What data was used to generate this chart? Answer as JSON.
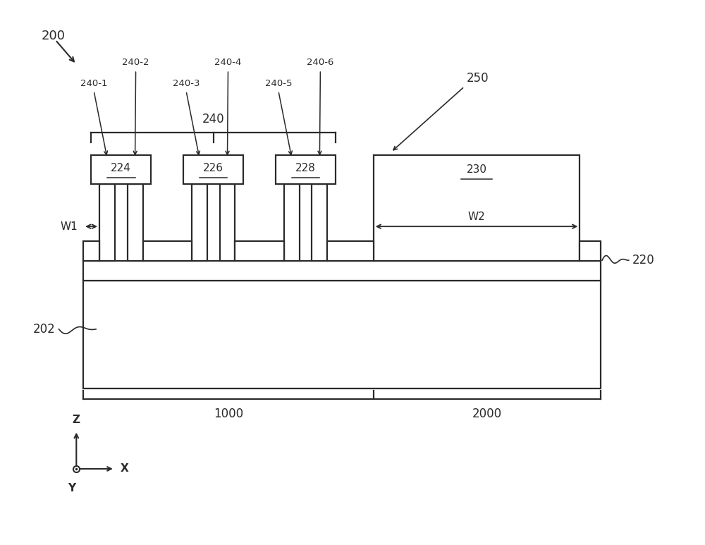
{
  "bg_color": "#ffffff",
  "line_color": "#2a2a2a",
  "lw": 1.6,
  "fig_label": "200",
  "substrate_label": "202",
  "device_label": "220",
  "region1_label": "1000",
  "region2_label": "2000",
  "cap_label": "240",
  "cap_subunit_labels": [
    "240-1",
    "240-2",
    "240-3",
    "240-4",
    "240-5",
    "240-6"
  ],
  "cell_labels": [
    "224",
    "226",
    "228"
  ],
  "iso_label": "230",
  "iso_ref": "250",
  "w1_label": "W1",
  "w2_label": "W2",
  "axis_z": "Z",
  "axis_y": "Y",
  "axis_x": "X"
}
